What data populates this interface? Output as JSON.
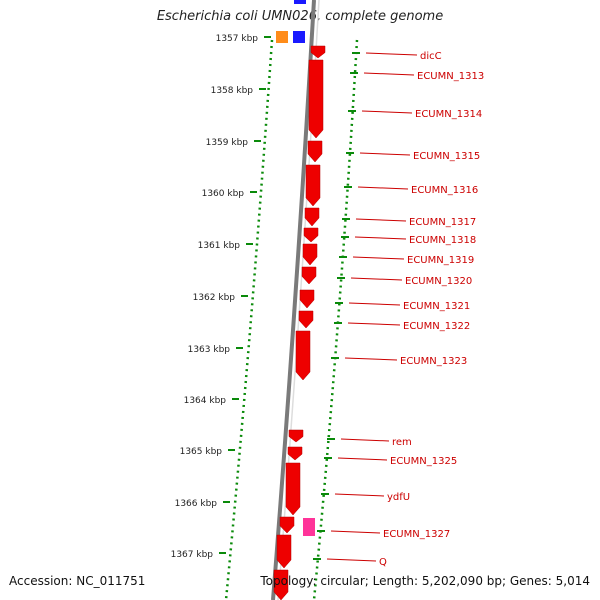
{
  "title": "Escherichia coli UMN026, complete genome",
  "accession": "Accession: NC_011751",
  "summary": "Topology: circular; Length: 5,202,090 bp; Genes: 5,014",
  "colors": {
    "gene": "#ee0000",
    "gene_label": "#cc0000",
    "ruler": "#0a8a0a",
    "backbone": "#7a7a7a",
    "marker_orange": "#ff8c1a",
    "marker_blue": "#1a1aff",
    "marker_pink": "#ff3399"
  },
  "ruler_labels": [
    "1357 kbp",
    "1358 kbp",
    "1359 kbp",
    "1360 kbp",
    "1361 kbp",
    "1362 kbp",
    "1363 kbp",
    "1364 kbp",
    "1365 kbp",
    "1366 kbp",
    "1367 kbp"
  ],
  "gene_labels": [
    "dicC",
    "ECUMN_1313",
    "ECUMN_1314",
    "ECUMN_1315",
    "ECUMN_1316",
    "ECUMN_1317",
    "ECUMN_1318",
    "ECUMN_1319",
    "ECUMN_1320",
    "ECUMN_1321",
    "ECUMN_1322",
    "ECUMN_1323",
    "rem",
    "ECUMN_1325",
    "ydfU",
    "ECUMN_1327",
    "Q"
  ]
}
